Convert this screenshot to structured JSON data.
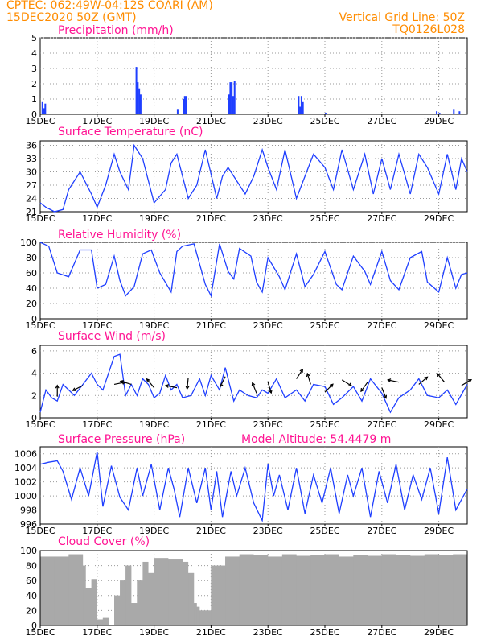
{
  "header": {
    "line1_left": "CPTEC:   062:49W-04:12S   COARI (AM)",
    "line2_left": "15DEC2020 50Z (GMT)",
    "line1_right": "Vertical Grid Line: 50Z",
    "line2_right": "TQ0126L028"
  },
  "colors": {
    "series": "#1f3fff",
    "title": "#ff1493",
    "header": "#ff8c00",
    "cloud": "#a9a9a9",
    "arrow": "#000000"
  },
  "x_tick_labels": [
    "15DEC",
    "17DEC",
    "19DEC",
    "21DEC",
    "23DEC",
    "25DEC",
    "27DEC",
    "29DEC"
  ],
  "x_day_range": [
    15,
    30
  ],
  "chart_data": [
    {
      "type": "bar",
      "title": "Precipitation (mm/h)",
      "ylim": [
        0,
        5
      ],
      "yticks": [
        "0",
        "1",
        "2",
        "3",
        "4",
        "5"
      ],
      "grid": true,
      "x": [
        15.05,
        15.1,
        15.15,
        17.6,
        18.35,
        18.4,
        18.45,
        18.5,
        19.8,
        20.0,
        20.05,
        20.1,
        21.6,
        21.65,
        21.7,
        21.75,
        21.8,
        24.05,
        24.1,
        24.15,
        24.2,
        25.0,
        28.9,
        29.0,
        29.5,
        29.7
      ],
      "values": [
        0.8,
        0.4,
        0.7,
        0.05,
        3.1,
        2.1,
        1.7,
        1.3,
        0.3,
        1.0,
        1.2,
        1.2,
        1.3,
        2.1,
        2.1,
        1.2,
        2.2,
        1.2,
        0.5,
        1.2,
        0.8,
        0.1,
        0.2,
        0.1,
        0.3,
        0.2
      ]
    },
    {
      "type": "line",
      "title": "Surface Temperature (nC)",
      "ylim": [
        21,
        37
      ],
      "yticks": [
        "21",
        "24",
        "27",
        "30",
        "33",
        "36"
      ],
      "grid": true,
      "x": [
        15.0,
        15.2,
        15.5,
        15.8,
        16.0,
        16.4,
        16.8,
        17.0,
        17.3,
        17.6,
        17.8,
        18.1,
        18.3,
        18.6,
        19.0,
        19.4,
        19.6,
        19.8,
        20.2,
        20.5,
        20.8,
        21.2,
        21.4,
        21.6,
        21.8,
        22.2,
        22.5,
        22.8,
        23.0,
        23.3,
        23.6,
        24.0,
        24.3,
        24.6,
        25.0,
        25.3,
        25.6,
        26.0,
        26.4,
        26.7,
        27.0,
        27.3,
        27.6,
        28.0,
        28.3,
        28.6,
        29.0,
        29.3,
        29.6,
        29.8,
        30.0
      ],
      "values": [
        23,
        22,
        21,
        21.5,
        26,
        30,
        25,
        22,
        27,
        34,
        30,
        26,
        36,
        33,
        23,
        26,
        32,
        34,
        24,
        27,
        35,
        24,
        29,
        31,
        29,
        25,
        29,
        35,
        31,
        26,
        35,
        24,
        29,
        34,
        31,
        26,
        35,
        26,
        34,
        25,
        33,
        26,
        34,
        25,
        34,
        31,
        25,
        34,
        26,
        33,
        30
      ]
    },
    {
      "type": "line",
      "title": "Relative Humidity (%)",
      "ylim": [
        0,
        100
      ],
      "yticks": [
        "0",
        "20",
        "40",
        "60",
        "80",
        "100"
      ],
      "grid": true,
      "x": [
        15.0,
        15.3,
        15.6,
        16.0,
        16.4,
        16.8,
        17.0,
        17.3,
        17.6,
        17.8,
        18.0,
        18.3,
        18.6,
        18.9,
        19.2,
        19.6,
        19.8,
        20.0,
        20.4,
        20.8,
        21.0,
        21.3,
        21.6,
        21.8,
        22.0,
        22.4,
        22.6,
        22.8,
        23.0,
        23.4,
        23.6,
        24.0,
        24.3,
        24.6,
        25.0,
        25.4,
        25.6,
        26.0,
        26.4,
        26.6,
        27.0,
        27.3,
        27.6,
        28.0,
        28.4,
        28.6,
        29.0,
        29.3,
        29.6,
        29.8,
        30.0
      ],
      "values": [
        100,
        95,
        60,
        55,
        90,
        90,
        40,
        45,
        82,
        50,
        30,
        42,
        85,
        90,
        60,
        35,
        88,
        95,
        98,
        45,
        30,
        98,
        62,
        52,
        92,
        82,
        48,
        35,
        80,
        55,
        38,
        85,
        42,
        58,
        88,
        45,
        38,
        82,
        62,
        45,
        88,
        50,
        38,
        80,
        88,
        48,
        35,
        80,
        40,
        58,
        60
      ]
    },
    {
      "type": "line",
      "title": "Surface Wind (m/s)",
      "ylim": [
        0,
        6.5
      ],
      "yticks": [
        "0",
        "2",
        "4",
        "6"
      ],
      "grid": true,
      "x": [
        15.0,
        15.2,
        15.4,
        15.6,
        15.8,
        16.0,
        16.2,
        16.5,
        16.8,
        17.0,
        17.2,
        17.4,
        17.6,
        17.8,
        18.0,
        18.2,
        18.4,
        18.6,
        18.8,
        19.0,
        19.2,
        19.4,
        19.6,
        19.8,
        20.0,
        20.3,
        20.6,
        20.8,
        21.0,
        21.3,
        21.5,
        21.8,
        22.0,
        22.3,
        22.6,
        22.8,
        23.0,
        23.3,
        23.6,
        24.0,
        24.3,
        24.6,
        25.0,
        25.3,
        25.6,
        26.0,
        26.3,
        26.6,
        27.0,
        27.3,
        27.6,
        28.0,
        28.3,
        28.6,
        29.0,
        29.3,
        29.6,
        30.0
      ],
      "values": [
        0.5,
        2.5,
        1.8,
        1.5,
        3,
        2.5,
        2,
        3,
        4,
        3,
        2.5,
        4,
        5.5,
        5.7,
        2,
        3,
        2,
        3.5,
        3,
        1.8,
        2.2,
        3.8,
        2.5,
        3,
        1.8,
        2,
        3.5,
        2,
        3.8,
        2.5,
        4.5,
        1.5,
        2.5,
        2,
        1.8,
        2.5,
        2.2,
        3.5,
        1.8,
        2.5,
        1.5,
        3,
        2.8,
        1.2,
        1.8,
        2.8,
        1.5,
        3.5,
        2.2,
        0.5,
        1.8,
        2.5,
        3.5,
        2,
        1.8,
        2.5,
        1.2,
        3
      ]
    },
    {
      "type": "line",
      "title": "Surface Pressure (hPa)",
      "annotation": "Model Altitude: 54.4479 m",
      "ylim": [
        996,
        1007
      ],
      "yticks": [
        "996",
        "998",
        "1000",
        "1002",
        "1004",
        "1006"
      ],
      "grid": true,
      "x": [
        15.0,
        15.3,
        15.6,
        15.8,
        16.1,
        16.4,
        16.7,
        17.0,
        17.2,
        17.5,
        17.8,
        18.1,
        18.4,
        18.6,
        18.9,
        19.2,
        19.5,
        19.7,
        19.9,
        20.2,
        20.5,
        20.8,
        21.0,
        21.2,
        21.4,
        21.7,
        21.9,
        22.2,
        22.5,
        22.8,
        23.0,
        23.2,
        23.4,
        23.7,
        24.0,
        24.3,
        24.6,
        24.9,
        25.2,
        25.5,
        25.8,
        26.0,
        26.3,
        26.6,
        26.9,
        27.2,
        27.5,
        27.8,
        28.1,
        28.4,
        28.7,
        29.0,
        29.3,
        29.6,
        30.0
      ],
      "values": [
        1004.5,
        1004.8,
        1005,
        1003.5,
        999.5,
        1004,
        1000,
        1006.3,
        998.5,
        1004.3,
        999.8,
        998,
        1004,
        1000,
        1004.5,
        998,
        1004,
        1001,
        997,
        1004,
        999,
        1004,
        998,
        1003.5,
        997,
        1003.5,
        1000,
        1004,
        999,
        996.5,
        1004.5,
        1000,
        1003,
        998,
        1004,
        997.5,
        1003,
        999,
        1004,
        997.5,
        1003,
        1000,
        1004,
        997,
        1003.5,
        999,
        1004.5,
        998,
        1003,
        999.5,
        1004,
        997.5,
        1005.5,
        998,
        1001
      ]
    },
    {
      "type": "bar",
      "title": "Cloud Cover (%)",
      "ylim": [
        0,
        100
      ],
      "yticks": [
        "0",
        "20",
        "40",
        "60",
        "80",
        "100"
      ],
      "grid": true,
      "x": [
        15.0,
        15.5,
        16.0,
        16.5,
        16.6,
        16.8,
        17.0,
        17.2,
        17.4,
        17.6,
        17.8,
        18.0,
        18.2,
        18.4,
        18.6,
        18.8,
        19.0,
        19.5,
        20.0,
        20.2,
        20.4,
        20.5,
        20.6,
        21.0,
        21.5,
        22.0,
        22.5,
        23.0,
        23.5,
        24.0,
        24.5,
        25.0,
        25.5,
        26.0,
        26.5,
        27.0,
        27.5,
        28.0,
        28.5,
        29.0,
        29.5,
        30.0
      ],
      "values": [
        92,
        92,
        95,
        80,
        50,
        62,
        8,
        10,
        1,
        40,
        60,
        80,
        30,
        60,
        85,
        70,
        90,
        88,
        85,
        70,
        30,
        25,
        20,
        80,
        92,
        95,
        94,
        92,
        95,
        93,
        94,
        95,
        92,
        94,
        93,
        95,
        94,
        93,
        95,
        94,
        95,
        93
      ]
    }
  ]
}
